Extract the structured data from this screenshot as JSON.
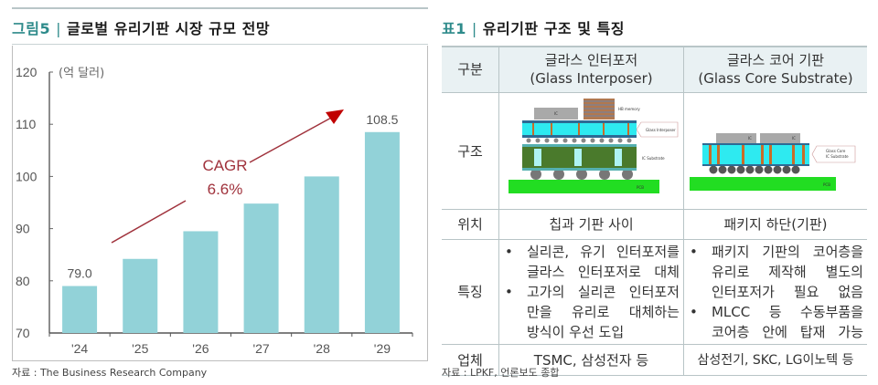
{
  "left": {
    "heading": {
      "number": "그림5",
      "separator": "|",
      "title": "글로벌 유리기판 시장 규모 전망"
    },
    "source": "자료 : The Business Research Company"
  },
  "right": {
    "heading": {
      "number": "표1",
      "separator": "|",
      "title": "유리기판 구조 및 특징"
    },
    "table": {
      "headers": [
        {
          "line1": "구분",
          "line2": ""
        },
        {
          "line1": "글라스 인터포저",
          "line2": "(Glass Interposer)"
        },
        {
          "line1": "글라스 코어 기판",
          "line2": "(Glass Core Substrate)"
        }
      ],
      "rows": {
        "structure": {
          "label": "구조",
          "interposer_diagram": {
            "labels": [
              "IC",
              "HB memory",
              "Glass Interposer",
              "IC Substrate",
              "PCB"
            ]
          },
          "core_diagram": {
            "labels": [
              "IC",
              "IC",
              "Glass Core",
              "IC Substrate",
              "PCB"
            ]
          }
        },
        "position": {
          "label": "위치",
          "interposer": "칩과 기판 사이",
          "core": "패키지 하단(기판)"
        },
        "features": {
          "label": "특징",
          "bullet": "•",
          "interposer": [
            {
              "lines": [
                "실리콘, 유기 인터포저를",
                "글라스 인터포저로 대체"
              ]
            },
            {
              "lines": [
                "고가의 실리콘 인터포저",
                "만을 유리로 대체하는",
                "방식이 우선 도입"
              ]
            }
          ],
          "core": [
            {
              "lines": [
                "패키지 기판의 코어층을",
                "유리로 제작해 별도의",
                "인터포저가 필요 없음"
              ]
            },
            {
              "lines": [
                "MLCC 등 수동부품을",
                "코어층 안에 탑재 가능"
              ]
            }
          ]
        },
        "companies": {
          "label": "업체",
          "interposer": "TSMC, 삼성전자 등",
          "core": "삼성전기, SKC, LG이노텍 등"
        }
      }
    },
    "source": "자료 : LPKF, 언론보도 종합"
  },
  "colors": {
    "accent": "#2e8b8b",
    "bar": "#92d2d8",
    "cagr": "#a0323c",
    "arrow_head": "#c00000",
    "table_header_bg": "#e9f1f3"
  },
  "chart_data": {
    "type": "bar",
    "title": "글로벌 유리기판 시장 규모 전망",
    "unit_label": "(억 달러)",
    "categories": [
      "'24",
      "'25",
      "'26",
      "'27",
      "'28",
      "'29"
    ],
    "values": [
      79.0,
      84.2,
      89.5,
      94.8,
      100.0,
      108.5
    ],
    "data_labels": {
      "first": "79.0",
      "last": "108.5"
    },
    "xlabel": "",
    "ylabel": "(억 달러)",
    "ylim": [
      70,
      120
    ],
    "yticks": [
      70,
      80,
      90,
      100,
      110,
      120
    ],
    "grid": false,
    "legend": "none",
    "annotation": {
      "text_line1": "CAGR",
      "text_line2": "6.6%",
      "type": "arrow",
      "from": "'24",
      "to": "'29"
    },
    "source": "The Business Research Company"
  }
}
